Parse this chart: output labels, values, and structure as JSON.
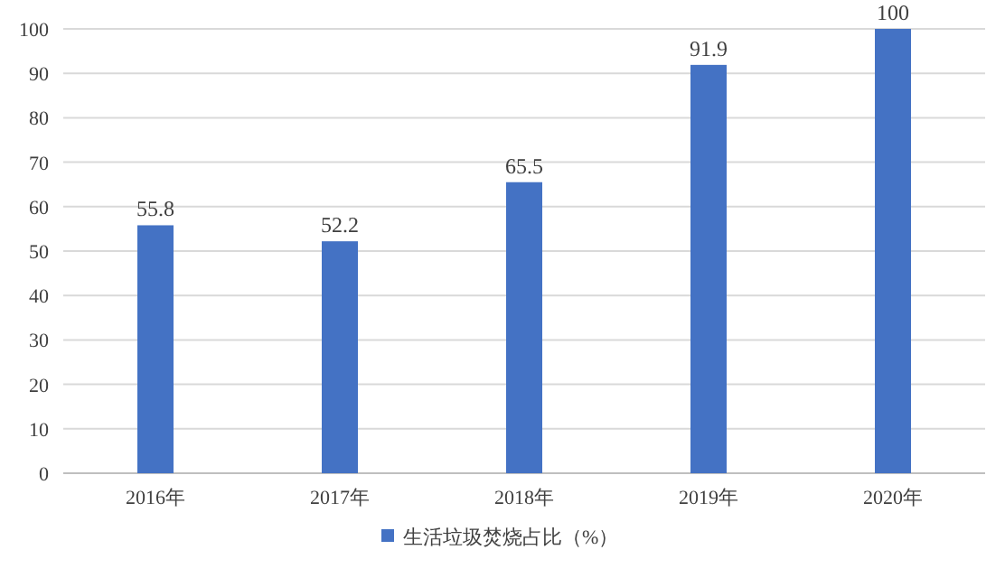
{
  "chart_data": {
    "type": "bar",
    "categories": [
      "2016年",
      "2017年",
      "2018年",
      "2019年",
      "2020年"
    ],
    "series": [
      {
        "name": "生活垃圾焚烧占比（%）",
        "color": "#4472c4",
        "values": [
          55.8,
          52.2,
          65.5,
          91.9,
          100
        ]
      }
    ],
    "ylim": [
      0,
      100
    ],
    "yticks": [
      0,
      10,
      20,
      30,
      40,
      50,
      60,
      70,
      80,
      90,
      100
    ],
    "grid": "y",
    "legend": "bottom",
    "data_labels": true
  }
}
